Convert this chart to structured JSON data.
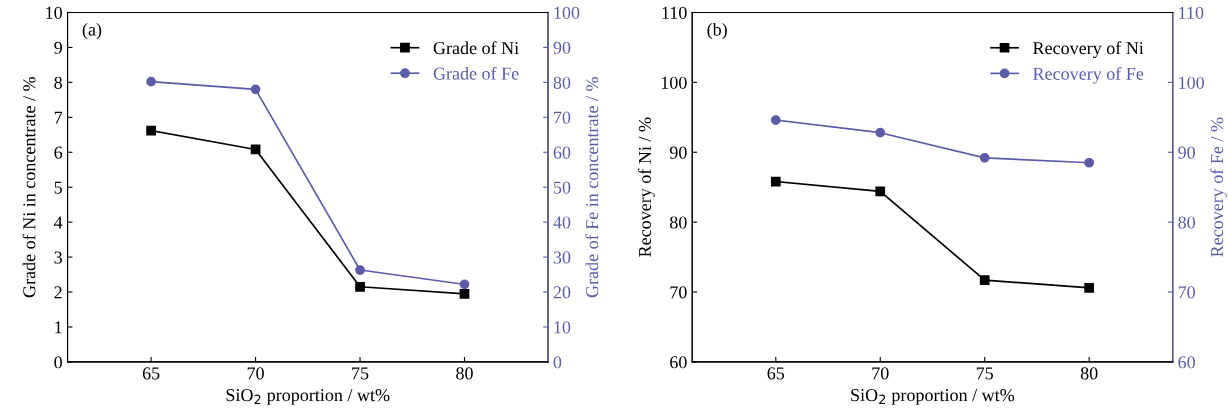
{
  "chart_data": [
    {
      "type": "line",
      "x": [
        65,
        70,
        75,
        80
      ],
      "xlim": [
        61,
        84
      ],
      "xticks": [
        65,
        70,
        75,
        80
      ],
      "ylim": [
        0,
        10
      ],
      "yticks": [
        0,
        1,
        2,
        3,
        4,
        5,
        6,
        7,
        8,
        9,
        10
      ],
      "y2lim": [
        0,
        100
      ],
      "y2ticks": [
        0,
        10,
        20,
        30,
        40,
        50,
        60,
        70,
        80,
        90,
        100
      ],
      "xlabel": "SiO$_{2}$ proportion / wt%",
      "ylabel": "Grade of Ni in concentrate / %",
      "y2label": "Grade of Fe in concentrate / %",
      "annotations": [
        "(a)"
      ],
      "legend": "top right",
      "grid": false,
      "line_style": "solid",
      "series": [
        {
          "name": "Grade of Ni",
          "color": "#000000",
          "marker": "square",
          "values": [
            6.62,
            6.08,
            2.15,
            1.95
          ]
        },
        {
          "name": "Grade of Fe",
          "color": "#5b5ba8",
          "marker": "circle",
          "axis": "y2",
          "values": [
            80.2,
            78.0,
            26.3,
            22.2
          ]
        }
      ]
    },
    {
      "type": "line",
      "x": [
        65,
        70,
        75,
        80
      ],
      "xlim": [
        61,
        84
      ],
      "xticks": [
        65,
        70,
        75,
        80
      ],
      "ylim": [
        60,
        110
      ],
      "yticks": [
        60,
        70,
        80,
        90,
        100,
        110
      ],
      "y2lim": [
        60,
        110
      ],
      "y2ticks": [
        60,
        70,
        80,
        90,
        100,
        110
      ],
      "xlabel": "SiO$_{2}$ proportion / wt%",
      "ylabel": "Recovery of Ni / %",
      "y2label": "Recovery of Fe / %",
      "annotations": [
        "(b)"
      ],
      "legend": "top right",
      "grid": false,
      "line_style": "solid",
      "series": [
        {
          "name": "Recovery of Ni",
          "color": "#000000",
          "marker": "square",
          "values": [
            85.8,
            84.4,
            71.7,
            70.6
          ]
        },
        {
          "name": "Recovery of Fe",
          "color": "#5b5ba8",
          "marker": "circle",
          "axis": "y2",
          "values": [
            94.6,
            92.8,
            89.2,
            88.5
          ]
        }
      ]
    }
  ]
}
